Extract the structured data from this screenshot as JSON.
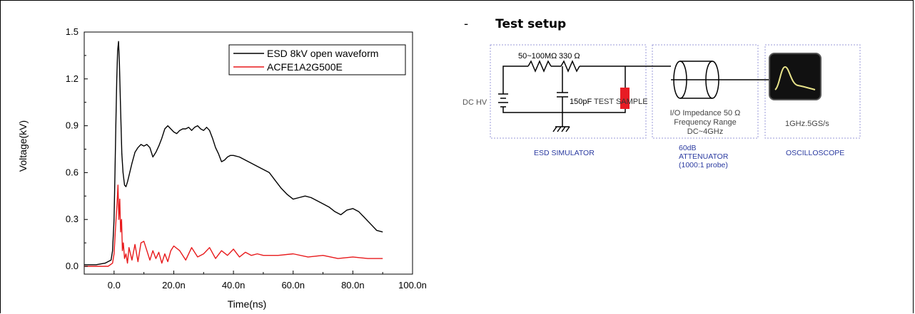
{
  "chart_data": {
    "type": "line",
    "xlabel": "Time(ns)",
    "ylabel": "Voltage(kV)",
    "xlim": [
      -10,
      100
    ],
    "ylim": [
      -0.05,
      1.5
    ],
    "x_ticks": [
      0,
      20,
      40,
      60,
      80,
      100
    ],
    "x_tick_labels": [
      "0.0",
      "20.0n",
      "40.0n",
      "60.0n",
      "80.0n",
      "100.0n"
    ],
    "y_ticks": [
      0.0,
      0.3,
      0.6,
      0.9,
      1.2,
      1.5
    ],
    "y_tick_labels": [
      "0.0",
      "0.3",
      "0.6",
      "0.9",
      "1.2",
      "1.5"
    ],
    "grid": false,
    "legend_position": "top-right",
    "series": [
      {
        "name": "ESD 8kV open waveform",
        "color": "#000000",
        "x": [
          -10,
          -6,
          -3,
          -1,
          -0.5,
          0,
          0.3,
          0.6,
          0.9,
          1.2,
          1.5,
          1.8,
          2.2,
          2.6,
          3,
          3.5,
          4,
          4.5,
          5,
          6,
          7,
          8,
          9,
          10,
          11,
          12,
          13,
          14,
          15,
          16,
          17,
          18,
          19,
          20,
          21,
          22,
          23,
          24,
          25,
          26,
          27,
          28,
          29,
          30,
          31,
          32,
          33,
          34,
          35,
          36,
          37,
          38,
          39,
          40,
          42,
          44,
          46,
          48,
          50,
          52,
          54,
          56,
          58,
          60,
          62,
          64,
          66,
          68,
          70,
          72,
          74,
          76,
          78,
          80,
          82,
          84,
          86,
          88,
          90
        ],
        "y": [
          0.01,
          0.01,
          0.02,
          0.04,
          0.1,
          0.3,
          0.6,
          0.9,
          1.2,
          1.38,
          1.44,
          1.3,
          1.0,
          0.72,
          0.6,
          0.52,
          0.51,
          0.54,
          0.58,
          0.66,
          0.73,
          0.76,
          0.78,
          0.77,
          0.78,
          0.76,
          0.7,
          0.73,
          0.77,
          0.82,
          0.88,
          0.9,
          0.88,
          0.86,
          0.85,
          0.87,
          0.88,
          0.88,
          0.89,
          0.87,
          0.89,
          0.9,
          0.88,
          0.87,
          0.89,
          0.87,
          0.82,
          0.76,
          0.72,
          0.67,
          0.68,
          0.7,
          0.71,
          0.71,
          0.7,
          0.68,
          0.66,
          0.64,
          0.62,
          0.6,
          0.55,
          0.5,
          0.46,
          0.43,
          0.44,
          0.45,
          0.44,
          0.42,
          0.4,
          0.38,
          0.35,
          0.33,
          0.36,
          0.37,
          0.35,
          0.31,
          0.27,
          0.23,
          0.22
        ]
      },
      {
        "name": "ACFE1A2G500E",
        "color": "#e8191b",
        "x": [
          -10,
          -5,
          -2,
          -0.5,
          0,
          0.5,
          1,
          1.3,
          1.6,
          1.9,
          2.2,
          2.5,
          2.8,
          3.1,
          3.5,
          4,
          4.5,
          5,
          6,
          7,
          8,
          9,
          10,
          11,
          12,
          13,
          14,
          15,
          16,
          17,
          18,
          19,
          20,
          22,
          24,
          26,
          28,
          30,
          32,
          34,
          36,
          38,
          40,
          42,
          44,
          46,
          48,
          50,
          55,
          60,
          65,
          70,
          75,
          80,
          85,
          90
        ],
        "y": [
          0.0,
          0.0,
          0.0,
          0.02,
          0.08,
          0.25,
          0.4,
          0.52,
          0.3,
          0.43,
          0.22,
          0.3,
          0.1,
          0.15,
          0.05,
          0.08,
          0.02,
          0.12,
          0.04,
          0.14,
          0.03,
          0.15,
          0.16,
          0.1,
          0.04,
          0.1,
          0.05,
          0.09,
          0.02,
          0.08,
          0.03,
          0.1,
          0.13,
          0.1,
          0.04,
          0.12,
          0.06,
          0.08,
          0.12,
          0.05,
          0.1,
          0.07,
          0.11,
          0.06,
          0.09,
          0.07,
          0.08,
          0.07,
          0.07,
          0.08,
          0.06,
          0.07,
          0.05,
          0.06,
          0.05,
          0.05
        ]
      }
    ]
  },
  "setup": {
    "dash": "-",
    "heading": "Test setup",
    "resistor1_label": "50~100MΩ",
    "resistor2_label": "330 Ω",
    "dc_label": "DC HV",
    "cap_label": "150pF",
    "test_sample_label": "TEST SAMPLE",
    "impedance_label": "I/O Impedance 50 Ω",
    "freq_label": "Frequency Range",
    "freq_value": "DC~4GHz",
    "scope_spec": "1GHz.5GS/s",
    "sim_caption": "ESD SIMULATOR",
    "att_caption_1": "60dB",
    "att_caption_2": "ATTENUATOR",
    "att_caption_3": "(1000:1 probe)",
    "scope_caption": "OSCILLOSCOPE"
  }
}
